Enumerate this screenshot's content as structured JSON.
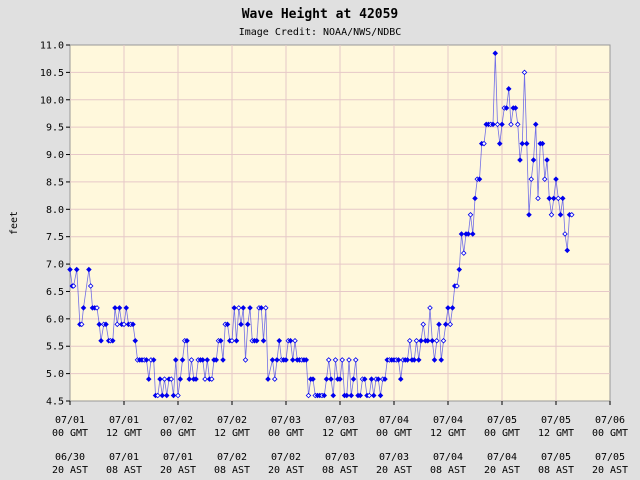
{
  "chart_data": {
    "type": "scatter",
    "title": "Wave Height at 42059",
    "subtitle": "Image Credit: NOAA/NWS/NDBC",
    "ylabel": "feet",
    "ylim": [
      4.5,
      11.0
    ],
    "yticks": [
      "4.5",
      "5.0",
      "5.5",
      "6.0",
      "6.5",
      "7.0",
      "7.5",
      "8.0",
      "8.5",
      "9.0",
      "9.5",
      "10.0",
      "10.5",
      "11.0"
    ],
    "xlim_hours": [
      0,
      120
    ],
    "xticks_gmt": [
      {
        "date": "07/01",
        "time": "00 GMT"
      },
      {
        "date": "07/01",
        "time": "12 GMT"
      },
      {
        "date": "07/02",
        "time": "00 GMT"
      },
      {
        "date": "07/02",
        "time": "12 GMT"
      },
      {
        "date": "07/03",
        "time": "00 GMT"
      },
      {
        "date": "07/03",
        "time": "12 GMT"
      },
      {
        "date": "07/04",
        "time": "00 GMT"
      },
      {
        "date": "07/04",
        "time": "12 GMT"
      },
      {
        "date": "07/05",
        "time": "00 GMT"
      },
      {
        "date": "07/05",
        "time": "12 GMT"
      },
      {
        "date": "07/06",
        "time": "00 GMT"
      }
    ],
    "xticks_ast": [
      {
        "date": "06/30",
        "time": "20 AST"
      },
      {
        "date": "07/01",
        "time": "08 AST"
      },
      {
        "date": "07/01",
        "time": "20 AST"
      },
      {
        "date": "07/02",
        "time": "08 AST"
      },
      {
        "date": "07/02",
        "time": "20 AST"
      },
      {
        "date": "07/03",
        "time": "08 AST"
      },
      {
        "date": "07/03",
        "time": "20 AST"
      },
      {
        "date": "07/04",
        "time": "08 AST"
      },
      {
        "date": "07/04",
        "time": "20 AST"
      },
      {
        "date": "07/05",
        "time": "08 AST"
      },
      {
        "date": "07/05",
        "time": "20 AST"
      }
    ],
    "grid": true,
    "series": [
      {
        "color": "#0000ee",
        "points": [
          [
            0.0,
            6.9
          ],
          [
            0.5,
            6.6
          ],
          [
            0.8,
            6.6
          ],
          [
            1.5,
            6.9
          ],
          [
            2.2,
            5.9
          ],
          [
            2.6,
            5.9
          ],
          [
            3.0,
            6.2
          ],
          [
            4.2,
            6.9
          ],
          [
            4.6,
            6.6
          ],
          [
            5.0,
            6.2
          ],
          [
            5.5,
            6.2
          ],
          [
            6.0,
            6.2
          ],
          [
            6.5,
            5.9
          ],
          [
            6.9,
            5.6
          ],
          [
            7.5,
            5.9
          ],
          [
            8.0,
            5.9
          ],
          [
            8.6,
            5.6
          ],
          [
            9.0,
            5.6
          ],
          [
            9.5,
            5.6
          ],
          [
            10.0,
            6.2
          ],
          [
            10.5,
            5.9
          ],
          [
            11.0,
            6.2
          ],
          [
            11.5,
            5.9
          ],
          [
            12.0,
            5.9
          ],
          [
            12.5,
            6.2
          ],
          [
            13.0,
            5.9
          ],
          [
            13.5,
            5.9
          ],
          [
            14.0,
            5.9
          ],
          [
            14.5,
            5.6
          ],
          [
            15.0,
            5.25
          ],
          [
            15.5,
            5.25
          ],
          [
            16.0,
            5.25
          ],
          [
            16.5,
            5.25
          ],
          [
            17.0,
            5.25
          ],
          [
            17.5,
            4.9
          ],
          [
            18.0,
            5.25
          ],
          [
            18.6,
            5.25
          ],
          [
            19.0,
            4.6
          ],
          [
            19.5,
            4.6
          ],
          [
            20.0,
            4.9
          ],
          [
            20.5,
            4.6
          ],
          [
            21.0,
            4.9
          ],
          [
            21.5,
            4.6
          ],
          [
            22.0,
            4.9
          ],
          [
            22.5,
            4.9
          ],
          [
            23.0,
            4.6
          ],
          [
            23.5,
            5.25
          ],
          [
            24.0,
            4.6
          ],
          [
            24.5,
            4.9
          ],
          [
            25.0,
            5.25
          ],
          [
            25.5,
            5.6
          ],
          [
            26.0,
            5.6
          ],
          [
            26.5,
            4.9
          ],
          [
            27.0,
            5.25
          ],
          [
            27.5,
            4.9
          ],
          [
            28.0,
            4.9
          ],
          [
            28.5,
            5.25
          ],
          [
            29.0,
            5.25
          ],
          [
            29.5,
            5.25
          ],
          [
            30.0,
            4.9
          ],
          [
            30.5,
            5.25
          ],
          [
            31.0,
            4.9
          ],
          [
            31.5,
            4.9
          ],
          [
            32.0,
            5.25
          ],
          [
            32.5,
            5.25
          ],
          [
            33.0,
            5.6
          ],
          [
            33.5,
            5.6
          ],
          [
            34.0,
            5.25
          ],
          [
            34.5,
            5.9
          ],
          [
            35.0,
            5.9
          ],
          [
            35.5,
            5.6
          ],
          [
            36.0,
            5.6
          ],
          [
            36.5,
            6.2
          ],
          [
            37.0,
            5.6
          ],
          [
            37.5,
            6.2
          ],
          [
            38.0,
            5.9
          ],
          [
            38.5,
            6.2
          ],
          [
            39.0,
            5.25
          ],
          [
            39.5,
            5.9
          ],
          [
            40.0,
            6.2
          ],
          [
            40.5,
            5.6
          ],
          [
            41.0,
            5.6
          ],
          [
            41.5,
            5.6
          ],
          [
            42.0,
            6.2
          ],
          [
            42.5,
            6.2
          ],
          [
            43.0,
            5.6
          ],
          [
            43.5,
            6.2
          ],
          [
            44.0,
            4.9
          ],
          [
            45.0,
            5.25
          ],
          [
            45.5,
            4.9
          ],
          [
            46.0,
            5.25
          ],
          [
            46.5,
            5.6
          ],
          [
            47.0,
            5.25
          ],
          [
            47.5,
            5.25
          ],
          [
            48.0,
            5.25
          ],
          [
            48.5,
            5.6
          ],
          [
            49.0,
            5.6
          ],
          [
            49.5,
            5.25
          ],
          [
            50.0,
            5.6
          ],
          [
            50.5,
            5.25
          ],
          [
            51.0,
            5.25
          ],
          [
            51.5,
            5.25
          ],
          [
            52.0,
            5.25
          ],
          [
            52.5,
            5.25
          ],
          [
            53.0,
            4.6
          ],
          [
            53.5,
            4.9
          ],
          [
            54.0,
            4.9
          ],
          [
            54.5,
            4.6
          ],
          [
            55.0,
            4.6
          ],
          [
            55.5,
            4.6
          ],
          [
            56.0,
            4.6
          ],
          [
            56.5,
            4.6
          ],
          [
            57.0,
            4.9
          ],
          [
            57.5,
            5.25
          ],
          [
            58.0,
            4.9
          ],
          [
            58.5,
            4.6
          ],
          [
            59.0,
            5.25
          ],
          [
            59.5,
            4.9
          ],
          [
            60.0,
            4.9
          ],
          [
            60.5,
            5.25
          ],
          [
            61.0,
            4.6
          ],
          [
            61.5,
            4.6
          ],
          [
            62.0,
            5.25
          ],
          [
            62.5,
            4.6
          ],
          [
            63.0,
            4.9
          ],
          [
            63.5,
            5.25
          ],
          [
            64.0,
            4.6
          ],
          [
            64.5,
            4.6
          ],
          [
            65.0,
            4.9
          ],
          [
            65.5,
            4.9
          ],
          [
            66.0,
            4.6
          ],
          [
            66.5,
            4.6
          ],
          [
            67.0,
            4.9
          ],
          [
            67.5,
            4.6
          ],
          [
            68.0,
            4.9
          ],
          [
            68.5,
            4.9
          ],
          [
            69.0,
            4.6
          ],
          [
            69.5,
            4.9
          ],
          [
            70.0,
            4.9
          ],
          [
            70.5,
            5.25
          ],
          [
            71.0,
            5.25
          ],
          [
            71.5,
            5.25
          ],
          [
            72.0,
            5.25
          ],
          [
            72.5,
            5.25
          ],
          [
            73.0,
            5.25
          ],
          [
            73.5,
            4.9
          ],
          [
            74.0,
            5.25
          ],
          [
            74.5,
            5.25
          ],
          [
            75.0,
            5.25
          ],
          [
            75.5,
            5.6
          ],
          [
            76.0,
            5.25
          ],
          [
            76.5,
            5.25
          ],
          [
            77.0,
            5.6
          ],
          [
            77.5,
            5.25
          ],
          [
            78.0,
            5.6
          ],
          [
            78.5,
            5.9
          ],
          [
            79.0,
            5.6
          ],
          [
            79.5,
            5.6
          ],
          [
            80.0,
            6.2
          ],
          [
            80.5,
            5.6
          ],
          [
            81.0,
            5.25
          ],
          [
            81.5,
            5.6
          ],
          [
            82.0,
            5.9
          ],
          [
            82.5,
            5.25
          ],
          [
            83.0,
            5.6
          ],
          [
            83.5,
            5.9
          ],
          [
            84.0,
            6.2
          ],
          [
            84.5,
            5.9
          ],
          [
            85.0,
            6.2
          ],
          [
            85.5,
            6.6
          ],
          [
            86.0,
            6.6
          ],
          [
            86.5,
            6.9
          ],
          [
            87.0,
            7.55
          ],
          [
            87.5,
            7.2
          ],
          [
            88.0,
            7.55
          ],
          [
            88.5,
            7.55
          ],
          [
            89.0,
            7.9
          ],
          [
            89.5,
            7.55
          ],
          [
            90.0,
            8.2
          ],
          [
            90.5,
            8.55
          ],
          [
            91.0,
            8.55
          ],
          [
            91.5,
            9.2
          ],
          [
            92.0,
            9.2
          ],
          [
            92.5,
            9.55
          ],
          [
            93.0,
            9.55
          ],
          [
            93.5,
            9.55
          ],
          [
            94.0,
            9.55
          ],
          [
            94.5,
            10.85
          ],
          [
            95.0,
            9.55
          ],
          [
            95.5,
            9.2
          ],
          [
            96.0,
            9.55
          ],
          [
            96.5,
            9.85
          ],
          [
            97.0,
            9.85
          ],
          [
            97.5,
            10.2
          ],
          [
            98.0,
            9.55
          ],
          [
            98.5,
            9.85
          ],
          [
            99.0,
            9.85
          ],
          [
            99.5,
            9.55
          ],
          [
            100.0,
            8.9
          ],
          [
            100.5,
            9.2
          ],
          [
            101.0,
            10.5
          ],
          [
            101.5,
            9.2
          ],
          [
            102.0,
            7.9
          ],
          [
            102.5,
            8.55
          ],
          [
            103.0,
            8.9
          ],
          [
            103.5,
            9.55
          ],
          [
            104.0,
            8.2
          ],
          [
            104.5,
            9.2
          ],
          [
            105.0,
            9.2
          ],
          [
            105.5,
            8.55
          ],
          [
            106.0,
            8.9
          ],
          [
            106.5,
            8.2
          ],
          [
            107.0,
            7.9
          ],
          [
            107.5,
            8.2
          ],
          [
            108.0,
            8.55
          ],
          [
            108.5,
            8.2
          ],
          [
            109.0,
            7.9
          ],
          [
            109.5,
            8.2
          ],
          [
            110.0,
            7.55
          ],
          [
            110.5,
            7.25
          ],
          [
            111.0,
            7.9
          ],
          [
            111.5,
            7.9
          ]
        ]
      }
    ]
  }
}
